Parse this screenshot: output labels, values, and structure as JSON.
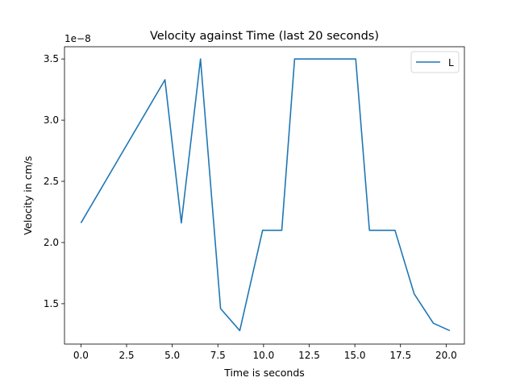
{
  "chart_data": {
    "type": "line",
    "title": "Velocity against Time (last 20 seconds)",
    "xlabel": "Time is seconds",
    "ylabel": "Velocity in cm/s",
    "y_offset_label": "1e−8",
    "xlim": [
      -0.9,
      21.0
    ],
    "ylim": [
      1.17,
      3.6
    ],
    "xticks": [
      0.0,
      2.5,
      5.0,
      7.5,
      10.0,
      12.5,
      15.0,
      17.5,
      20.0
    ],
    "xtick_labels": [
      "0.0",
      "2.5",
      "5.0",
      "7.5",
      "10.0",
      "12.5",
      "15.0",
      "17.5",
      "20.0"
    ],
    "yticks": [
      1.5,
      2.0,
      2.5,
      3.0,
      3.5
    ],
    "ytick_labels": [
      "1.5",
      "2.0",
      "2.5",
      "3.0",
      "3.5"
    ],
    "grid": false,
    "legend_position": "top-right",
    "series": [
      {
        "name": "L",
        "color": "#1f77b4",
        "x": [
          0.0,
          4.6,
          5.5,
          6.55,
          7.65,
          8.7,
          9.95,
          11.0,
          11.7,
          15.05,
          15.8,
          17.2,
          18.25,
          19.3,
          20.2
        ],
        "y": [
          2.16,
          3.33,
          2.16,
          3.5,
          1.46,
          1.28,
          2.1,
          2.1,
          3.5,
          3.5,
          2.1,
          2.1,
          1.58,
          1.34,
          1.28
        ]
      }
    ]
  }
}
